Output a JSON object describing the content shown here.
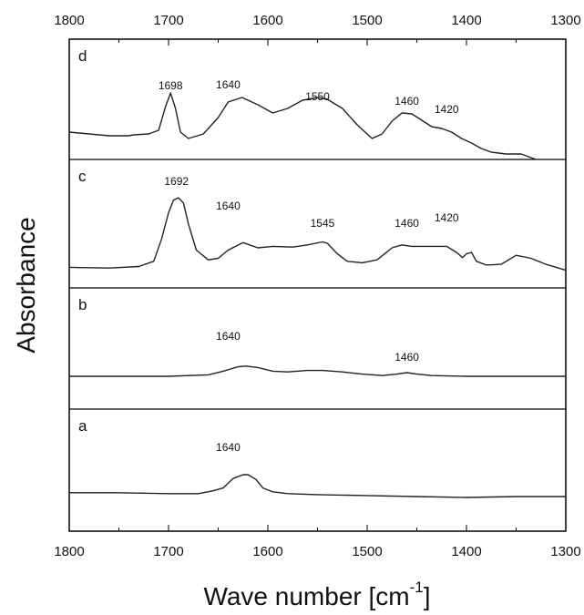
{
  "chart_data": {
    "type": "line",
    "title": "",
    "xlabel": "Wave number [cm",
    "xlabel_sup": "-1",
    "xlabel_close": "]",
    "ylabel": "Absorbance",
    "xlim": [
      1800,
      1300
    ],
    "x_reversed": true,
    "x_ticks": [
      "1800",
      "1700",
      "1600",
      "1500",
      "1400",
      "1300"
    ],
    "grid": false,
    "panels": [
      {
        "label": "d",
        "peaks": [
          {
            "x": 1698,
            "text": "1698"
          },
          {
            "x": 1640,
            "text": "1640"
          },
          {
            "x": 1550,
            "text": "1550"
          },
          {
            "x": 1460,
            "text": "1460"
          },
          {
            "x": 1420,
            "text": "1420"
          }
        ],
        "x": [
          1800,
          1760,
          1740,
          1735,
          1720,
          1710,
          1703,
          1698,
          1693,
          1688,
          1680,
          1665,
          1650,
          1640,
          1626,
          1610,
          1595,
          1580,
          1565,
          1550,
          1540,
          1525,
          1510,
          1495,
          1485,
          1475,
          1465,
          1455,
          1445,
          1435,
          1425,
          1415,
          1405,
          1395,
          1385,
          1375,
          1360,
          1345,
          1330
        ],
        "y": [
          0.12,
          0.08,
          0.08,
          0.09,
          0.1,
          0.14,
          0.4,
          0.55,
          0.38,
          0.12,
          0.05,
          0.1,
          0.28,
          0.45,
          0.5,
          0.42,
          0.33,
          0.38,
          0.47,
          0.5,
          0.48,
          0.38,
          0.2,
          0.05,
          0.1,
          0.24,
          0.33,
          0.32,
          0.25,
          0.18,
          0.16,
          0.12,
          0.05,
          0.0,
          -0.06,
          -0.1,
          -0.12,
          -0.12,
          -0.18
        ]
      },
      {
        "label": "c",
        "peaks": [
          {
            "x": 1692,
            "text": "1692"
          },
          {
            "x": 1640,
            "text": "1640"
          },
          {
            "x": 1545,
            "text": "1545"
          },
          {
            "x": 1460,
            "text": "1460"
          },
          {
            "x": 1420,
            "text": "1420"
          }
        ],
        "x": [
          1800,
          1760,
          1730,
          1715,
          1707,
          1700,
          1695,
          1690,
          1685,
          1680,
          1672,
          1660,
          1650,
          1640,
          1625,
          1610,
          1595,
          1575,
          1560,
          1545,
          1540,
          1530,
          1520,
          1505,
          1490,
          1475,
          1465,
          1455,
          1440,
          1420,
          1410,
          1404,
          1400,
          1395,
          1390,
          1380,
          1365,
          1350,
          1335,
          1320,
          1300
        ],
        "y": [
          0.02,
          0.01,
          0.03,
          0.1,
          0.4,
          0.75,
          0.92,
          0.95,
          0.88,
          0.6,
          0.25,
          0.12,
          0.14,
          0.25,
          0.35,
          0.28,
          0.3,
          0.29,
          0.32,
          0.36,
          0.34,
          0.2,
          0.1,
          0.08,
          0.12,
          0.28,
          0.32,
          0.3,
          0.3,
          0.3,
          0.22,
          0.15,
          0.2,
          0.22,
          0.1,
          0.05,
          0.06,
          0.18,
          0.14,
          0.06,
          -0.02
        ]
      },
      {
        "label": "b",
        "peaks": [
          {
            "x": 1640,
            "text": "1640"
          },
          {
            "x": 1460,
            "text": "1460"
          }
        ],
        "x": [
          1800,
          1700,
          1660,
          1645,
          1630,
          1622,
          1610,
          1595,
          1580,
          1560,
          1545,
          1525,
          1505,
          1485,
          1470,
          1460,
          1450,
          1435,
          1400,
          1350,
          1300
        ],
        "y": [
          0.0,
          0.0,
          0.02,
          0.07,
          0.13,
          0.14,
          0.12,
          0.07,
          0.06,
          0.08,
          0.08,
          0.06,
          0.03,
          0.01,
          0.03,
          0.05,
          0.03,
          0.01,
          0.0,
          0.0,
          0.0
        ]
      },
      {
        "label": "a",
        "peaks": [
          {
            "x": 1640,
            "text": "1640"
          }
        ],
        "x": [
          1800,
          1750,
          1700,
          1670,
          1655,
          1645,
          1635,
          1625,
          1620,
          1612,
          1605,
          1595,
          1580,
          1550,
          1500,
          1450,
          1400,
          1350,
          1300
        ],
        "y": [
          0.05,
          0.05,
          0.04,
          0.04,
          0.07,
          0.1,
          0.2,
          0.24,
          0.24,
          0.19,
          0.1,
          0.06,
          0.04,
          0.03,
          0.02,
          0.01,
          0.0,
          0.01,
          0.01
        ]
      }
    ]
  }
}
